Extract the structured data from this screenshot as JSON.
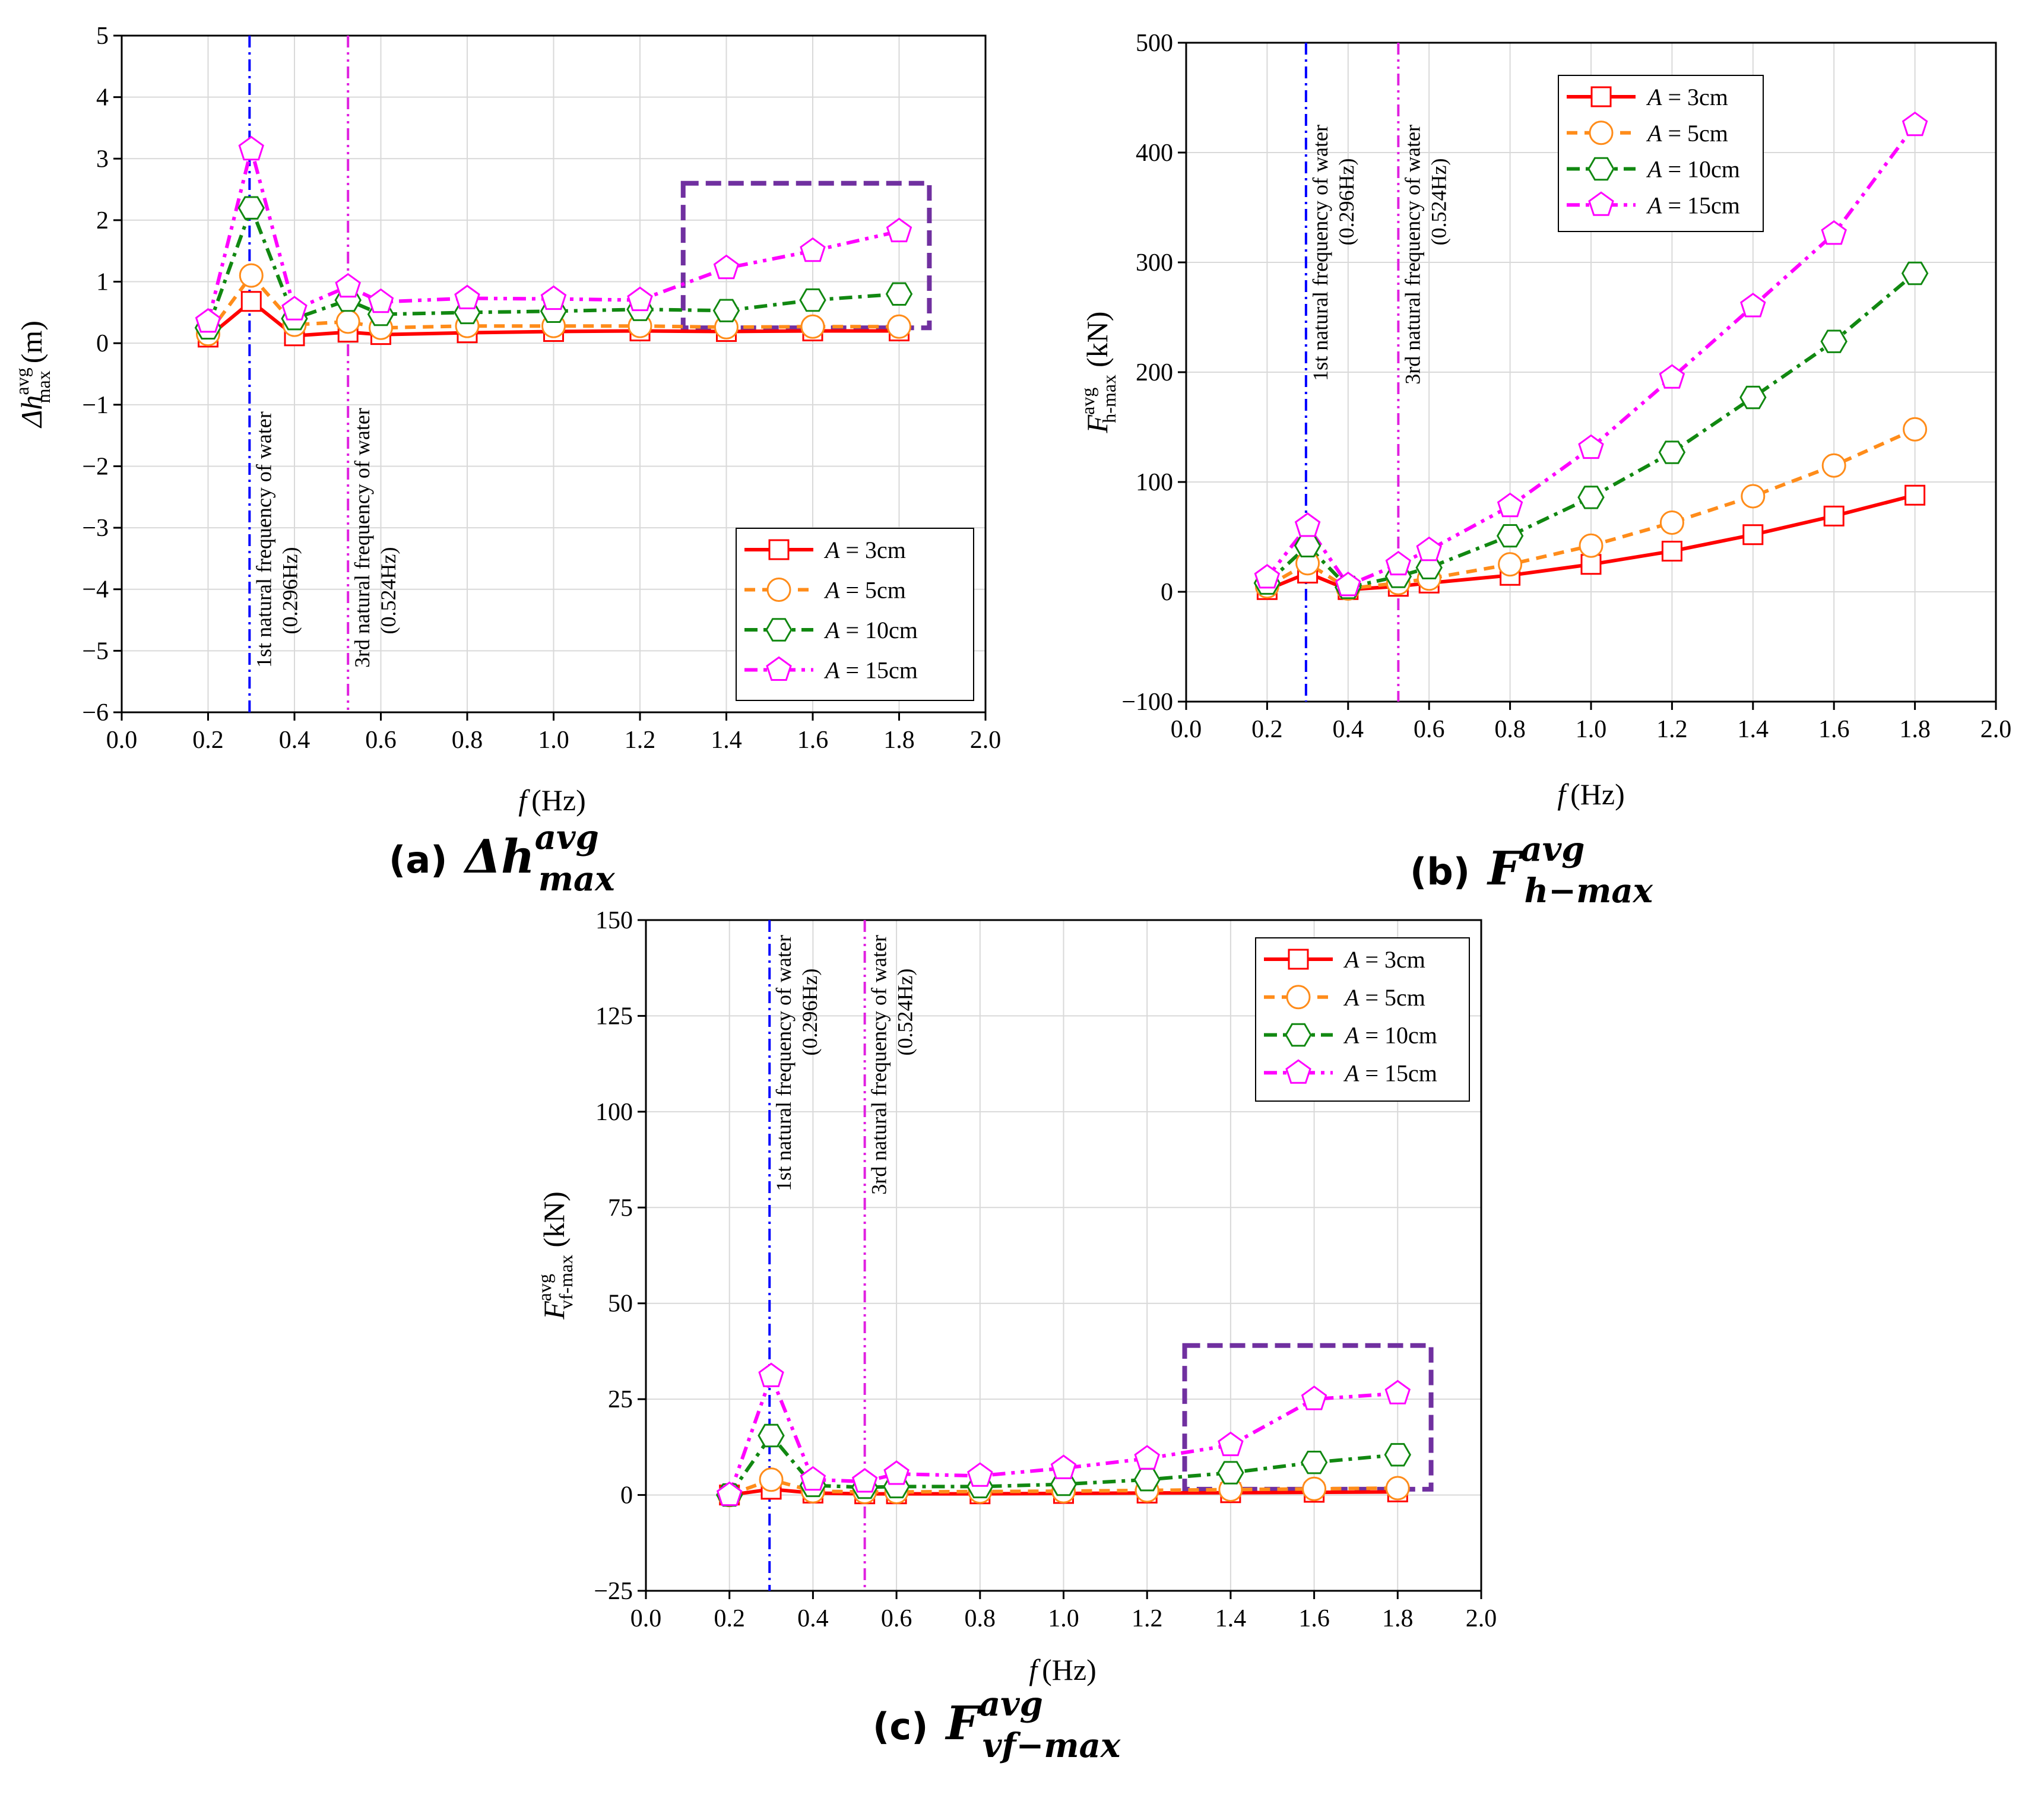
{
  "chart_data": [
    {
      "id": "a",
      "type": "line",
      "caption_label": "(a)",
      "caption_main": "Δh",
      "caption_sup": "avg",
      "caption_sub": "max",
      "ylabel_main": "Δh",
      "ylabel_sup": "avg",
      "ylabel_sub": "max",
      "ylabel_unit": "(m)",
      "xlabel_main": "f",
      "xlabel_unit": "(Hz)",
      "xlim": [
        0.0,
        2.0
      ],
      "ylim": [
        -6,
        5
      ],
      "xticks": [
        "0.0",
        "0.2",
        "0.4",
        "0.6",
        "0.8",
        "1.0",
        "1.2",
        "1.4",
        "1.6",
        "1.8",
        "2.0"
      ],
      "yticks": [
        "−6",
        "−5",
        "−4",
        "−3",
        "−2",
        "−1",
        "0",
        "1",
        "2",
        "3",
        "4",
        "5"
      ],
      "legend_position": "bottom-right",
      "highlight_box": {
        "x": [
          1.3,
          1.87
        ],
        "y": [
          0.25,
          2.6
        ]
      },
      "vlines": [
        {
          "x": 0.296,
          "color": "#0000ff",
          "line1": "1st natural frequency of water",
          "line2": "(0.296Hz)"
        },
        {
          "x": 0.524,
          "color": "#e020e0",
          "line1": "3rd natural frequency of water",
          "line2": "(0.524Hz)"
        }
      ],
      "x": [
        0.2,
        0.3,
        0.4,
        0.524,
        0.6,
        0.8,
        1.0,
        1.2,
        1.4,
        1.6,
        1.8
      ],
      "series": [
        {
          "name": "A = 3cm",
          "legend_var": "A",
          "legend_rest": " = 3cm",
          "values": [
            0.1,
            0.68,
            0.12,
            0.18,
            0.14,
            0.17,
            0.19,
            0.2,
            0.19,
            0.2,
            0.2
          ]
        },
        {
          "name": "A = 5cm",
          "legend_var": "A",
          "legend_rest": " = 5cm",
          "values": [
            0.15,
            1.1,
            0.3,
            0.35,
            0.25,
            0.28,
            0.28,
            0.28,
            0.26,
            0.27,
            0.27
          ]
        },
        {
          "name": "A = 10cm",
          "legend_var": "A",
          "legend_rest": " = 10cm",
          "values": [
            0.25,
            2.2,
            0.4,
            0.7,
            0.47,
            0.5,
            0.52,
            0.55,
            0.53,
            0.7,
            0.8
          ]
        },
        {
          "name": "A = 15cm",
          "legend_var": "A",
          "legend_rest": " = 15cm",
          "values": [
            0.35,
            3.15,
            0.55,
            0.92,
            0.67,
            0.73,
            0.72,
            0.7,
            1.22,
            1.5,
            1.82
          ]
        }
      ]
    },
    {
      "id": "b",
      "type": "line",
      "caption_label": "(b)",
      "caption_main": "F",
      "caption_sup": "avg",
      "caption_sub": "h−max",
      "ylabel_main": "F",
      "ylabel_sup": "avg",
      "ylabel_sub": "h-max",
      "ylabel_unit": "(kN)",
      "xlabel_main": "f",
      "xlabel_unit": "(Hz)",
      "xlim": [
        0.0,
        2.0
      ],
      "ylim": [
        -100,
        500
      ],
      "xticks": [
        "0.0",
        "0.2",
        "0.4",
        "0.6",
        "0.8",
        "1.0",
        "1.2",
        "1.4",
        "1.6",
        "1.8",
        "2.0"
      ],
      "yticks": [
        "−100",
        "0",
        "100",
        "200",
        "300",
        "400",
        "500"
      ],
      "legend_position": "top-left",
      "vlines": [
        {
          "x": 0.296,
          "color": "#0000ff",
          "line1": "1st natural frequency of water",
          "line2": "(0.296Hz)"
        },
        {
          "x": 0.524,
          "color": "#e020e0",
          "line1": "3rd natural frequency of water",
          "line2": "(0.524Hz)"
        }
      ],
      "x": [
        0.2,
        0.3,
        0.4,
        0.524,
        0.6,
        0.8,
        1.0,
        1.2,
        1.4,
        1.6,
        1.8
      ],
      "series": [
        {
          "name": "A = 3cm",
          "legend_var": "A",
          "legend_rest": " = 3cm",
          "values": [
            2,
            17,
            2,
            5,
            8,
            15,
            25,
            37,
            52,
            69,
            88
          ]
        },
        {
          "name": "A = 5cm",
          "legend_var": "A",
          "legend_rest": " = 5cm",
          "values": [
            5,
            26,
            3,
            8,
            12,
            25,
            42,
            63,
            87,
            115,
            148
          ]
        },
        {
          "name": "A = 10cm",
          "legend_var": "A",
          "legend_rest": " = 10cm",
          "values": [
            8,
            42,
            4,
            14,
            22,
            51,
            86,
            127,
            177,
            228,
            290
          ]
        },
        {
          "name": "A = 15cm",
          "legend_var": "A",
          "legend_rest": " = 15cm",
          "values": [
            13,
            60,
            6,
            25,
            38,
            78,
            131,
            195,
            260,
            326,
            425
          ]
        }
      ]
    },
    {
      "id": "c",
      "type": "line",
      "caption_label": "(c)",
      "caption_main": "F",
      "caption_sup": "avg",
      "caption_sub": "vf−max",
      "ylabel_main": "F",
      "ylabel_sup": "avg",
      "ylabel_sub": "vf-max",
      "ylabel_unit": "(kN)",
      "xlabel_main": "f",
      "xlabel_unit": "(Hz)",
      "xlim": [
        0.0,
        2.0
      ],
      "ylim": [
        -25,
        150
      ],
      "xticks": [
        "0.0",
        "0.2",
        "0.4",
        "0.6",
        "0.8",
        "1.0",
        "1.2",
        "1.4",
        "1.6",
        "1.8",
        "2.0"
      ],
      "yticks": [
        "−25",
        "0",
        "25",
        "50",
        "75",
        "100",
        "125",
        "150"
      ],
      "legend_position": "top-right",
      "highlight_box": {
        "x": [
          1.29,
          1.88
        ],
        "y": [
          1.5,
          39
        ]
      },
      "vlines": [
        {
          "x": 0.296,
          "color": "#0000ff",
          "line1": "1st natural frequency of water",
          "line2": "(0.296Hz)"
        },
        {
          "x": 0.524,
          "color": "#e020e0",
          "line1": "3rd natural frequency of water",
          "line2": "(0.524Hz)"
        }
      ],
      "x": [
        0.2,
        0.3,
        0.4,
        0.524,
        0.6,
        0.8,
        1.0,
        1.2,
        1.4,
        1.6,
        1.8
      ],
      "series": [
        {
          "name": "A = 3cm",
          "legend_var": "A",
          "legend_rest": " = 3cm",
          "values": [
            0,
            1.5,
            0.5,
            0.3,
            0.3,
            0.3,
            0.4,
            0.5,
            0.6,
            0.7,
            0.8
          ]
        },
        {
          "name": "A = 5cm",
          "legend_var": "A",
          "legend_rest": " = 5cm",
          "values": [
            0,
            4,
            1,
            0.8,
            0.8,
            0.9,
            1,
            1.2,
            1.4,
            1.6,
            1.8
          ]
        },
        {
          "name": "A = 10cm",
          "legend_var": "A",
          "legend_rest": " = 10cm",
          "values": [
            0,
            15.5,
            2.5,
            2,
            2.2,
            2.2,
            2.8,
            4,
            5.8,
            8.5,
            10.5
          ]
        },
        {
          "name": "A = 15cm",
          "legend_var": "A",
          "legend_rest": " = 15cm",
          "values": [
            0,
            31,
            4,
            3.5,
            5.5,
            5,
            7,
            9.5,
            13,
            25,
            26.5
          ]
        }
      ]
    }
  ],
  "styles": {
    "series_colors": [
      "#ff0000",
      "#ff8c1a",
      "#118811",
      "#ff00ff"
    ],
    "series_markers": [
      "square",
      "circle",
      "hexagon",
      "pentagon"
    ],
    "series_dash": [
      "none",
      "18 12",
      "22 10 6 10",
      "22 10 6 10 6 10"
    ],
    "box_color": "#7030a0",
    "grid_color": "#d9d9d9"
  }
}
